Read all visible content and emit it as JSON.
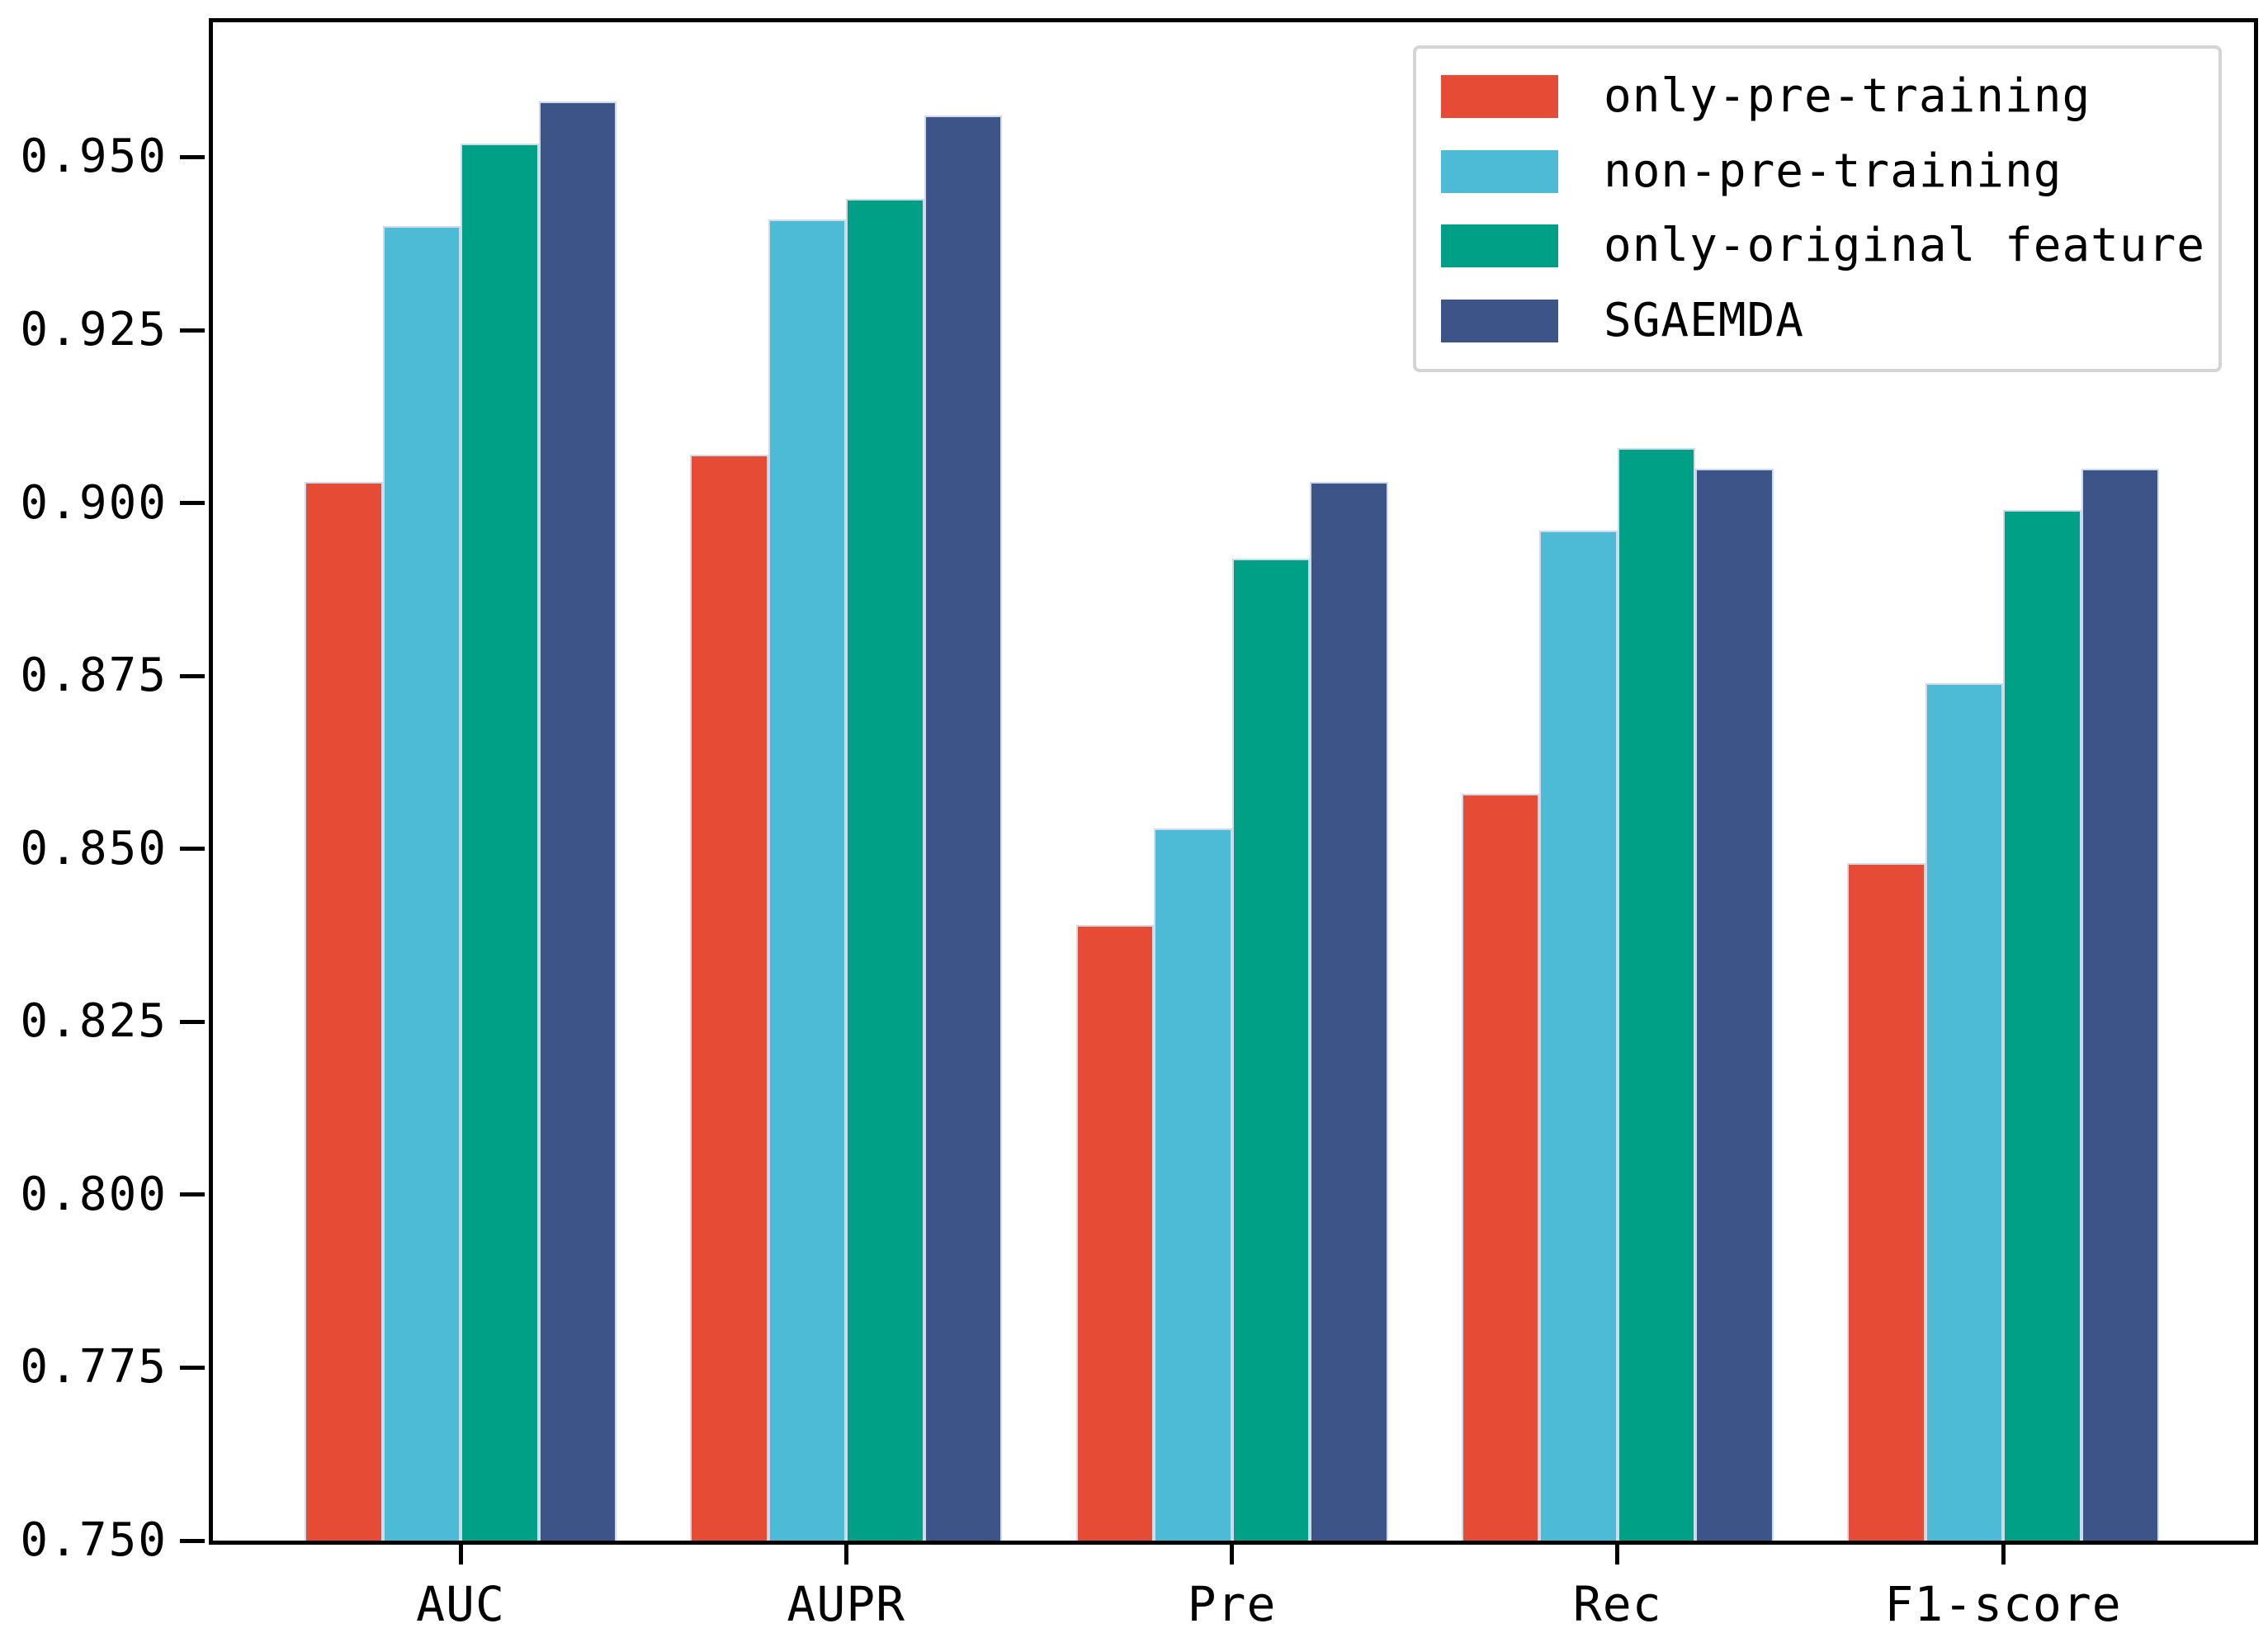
{
  "chart_data": {
    "type": "bar",
    "title": "",
    "xlabel": "",
    "ylabel": "",
    "categories": [
      "AUC",
      "AUPR",
      "Pre",
      "Rec",
      "F1-score"
    ],
    "series": [
      {
        "name": "only-pre-training",
        "color": "#E64B35",
        "values": [
          0.903,
          0.907,
          0.839,
          0.858,
          0.848
        ]
      },
      {
        "name": "non-pre-training",
        "color": "#4DBBD5",
        "values": [
          0.94,
          0.941,
          0.853,
          0.896,
          0.874
        ]
      },
      {
        "name": "only-original feature",
        "color": "#00A087",
        "values": [
          0.952,
          0.944,
          0.892,
          0.908,
          0.899
        ]
      },
      {
        "name": "SGAEMDA",
        "color": "#3C5488",
        "values": [
          0.958,
          0.956,
          0.903,
          0.905,
          0.905
        ]
      }
    ],
    "ylim": [
      0.75,
      0.9695
    ],
    "yticks": [
      0.75,
      0.775,
      0.8,
      0.825,
      0.85,
      0.875,
      0.9,
      0.925,
      0.95
    ],
    "ytick_labels": [
      "0.750",
      "0.775",
      "0.800",
      "0.825",
      "0.850",
      "0.875",
      "0.900",
      "0.925",
      "0.950"
    ],
    "grid": false,
    "legend_position": "upper right",
    "axis_color": "#000000",
    "bar_edge_color": "#cfdaea"
  }
}
